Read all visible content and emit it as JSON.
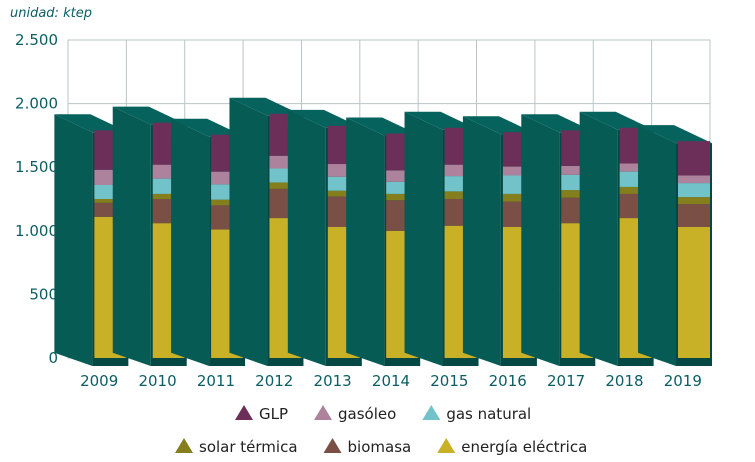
{
  "chart_data": {
    "type": "bar",
    "stacked": true,
    "unit_label": "unidad: ktep",
    "categories": [
      "2009",
      "2010",
      "2011",
      "2012",
      "2013",
      "2014",
      "2015",
      "2016",
      "2017",
      "2018",
      "2019"
    ],
    "ylim": [
      0,
      2500
    ],
    "yticks": [
      0,
      500,
      1000,
      1500,
      2000,
      2500
    ],
    "ytick_labels": [
      "0",
      "500",
      "1.000",
      "1.500",
      "2.000",
      "2.500"
    ],
    "grid": true,
    "legend_position": "bottom",
    "series": [
      {
        "name": "energía eléctrica",
        "color": "#c9b127",
        "values": [
          1110,
          1060,
          1010,
          1100,
          1030,
          1000,
          1040,
          1030,
          1060,
          1100,
          1030
        ]
      },
      {
        "name": "biomasa",
        "color": "#7a5046",
        "values": [
          110,
          190,
          190,
          230,
          240,
          240,
          210,
          200,
          200,
          190,
          180
        ]
      },
      {
        "name": "solar térmica",
        "color": "#857e1c",
        "values": [
          30,
          40,
          45,
          50,
          45,
          50,
          60,
          60,
          60,
          55,
          55
        ]
      },
      {
        "name": "gas natural",
        "color": "#72c3c9",
        "values": [
          110,
          120,
          120,
          110,
          110,
          95,
          120,
          145,
          120,
          120,
          110
        ]
      },
      {
        "name": "gasóleo",
        "color": "#ad829c",
        "values": [
          120,
          110,
          100,
          100,
          100,
          90,
          90,
          70,
          70,
          65,
          60
        ]
      },
      {
        "name": "GLP",
        "color": "#6b2f5a",
        "values": [
          310,
          330,
          290,
          330,
          300,
          290,
          290,
          270,
          280,
          280,
          270
        ]
      }
    ],
    "legend_order": [
      "GLP",
      "gasóleo",
      "gas natural",
      "solar térmica",
      "biomasa",
      "energía eléctrica"
    ],
    "box_color": "#065b55"
  }
}
